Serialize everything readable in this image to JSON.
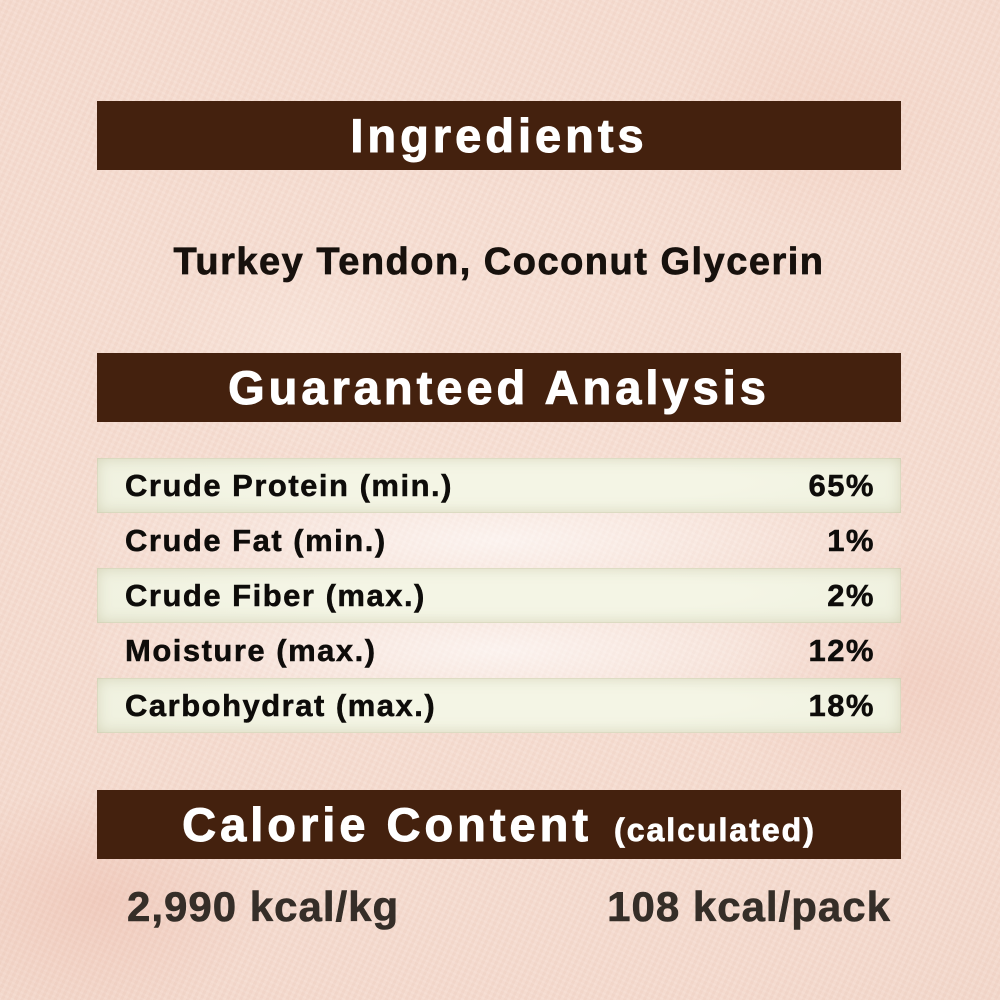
{
  "page": {
    "colors": {
      "background": "#f5dbcf",
      "bar_brown": "#44210e",
      "row_green": "#eceedb",
      "header_text": "#ffffff",
      "body_text": "#0e0c0a",
      "kcal_text": "#352e28"
    }
  },
  "ingredients": {
    "title": "Ingredients",
    "list_text": "Turkey Tendon, Coconut Glycerin"
  },
  "analysis": {
    "title": "Guaranteed Analysis",
    "rows": [
      {
        "label": "Crude Protein (min.)",
        "value": "65%"
      },
      {
        "label": "Crude Fat (min.)",
        "value": "1%"
      },
      {
        "label": "Crude Fiber (max.)",
        "value": "2%"
      },
      {
        "label": "Moisture (max.)",
        "value": "12%"
      },
      {
        "label": "Carbohydrat (max.)",
        "value": "18%"
      }
    ]
  },
  "calories": {
    "title": "Calorie Content",
    "subtitle": "(calculated)",
    "per_kg": "2,990 kcal/kg",
    "per_pack": "108 kcal/pack"
  }
}
